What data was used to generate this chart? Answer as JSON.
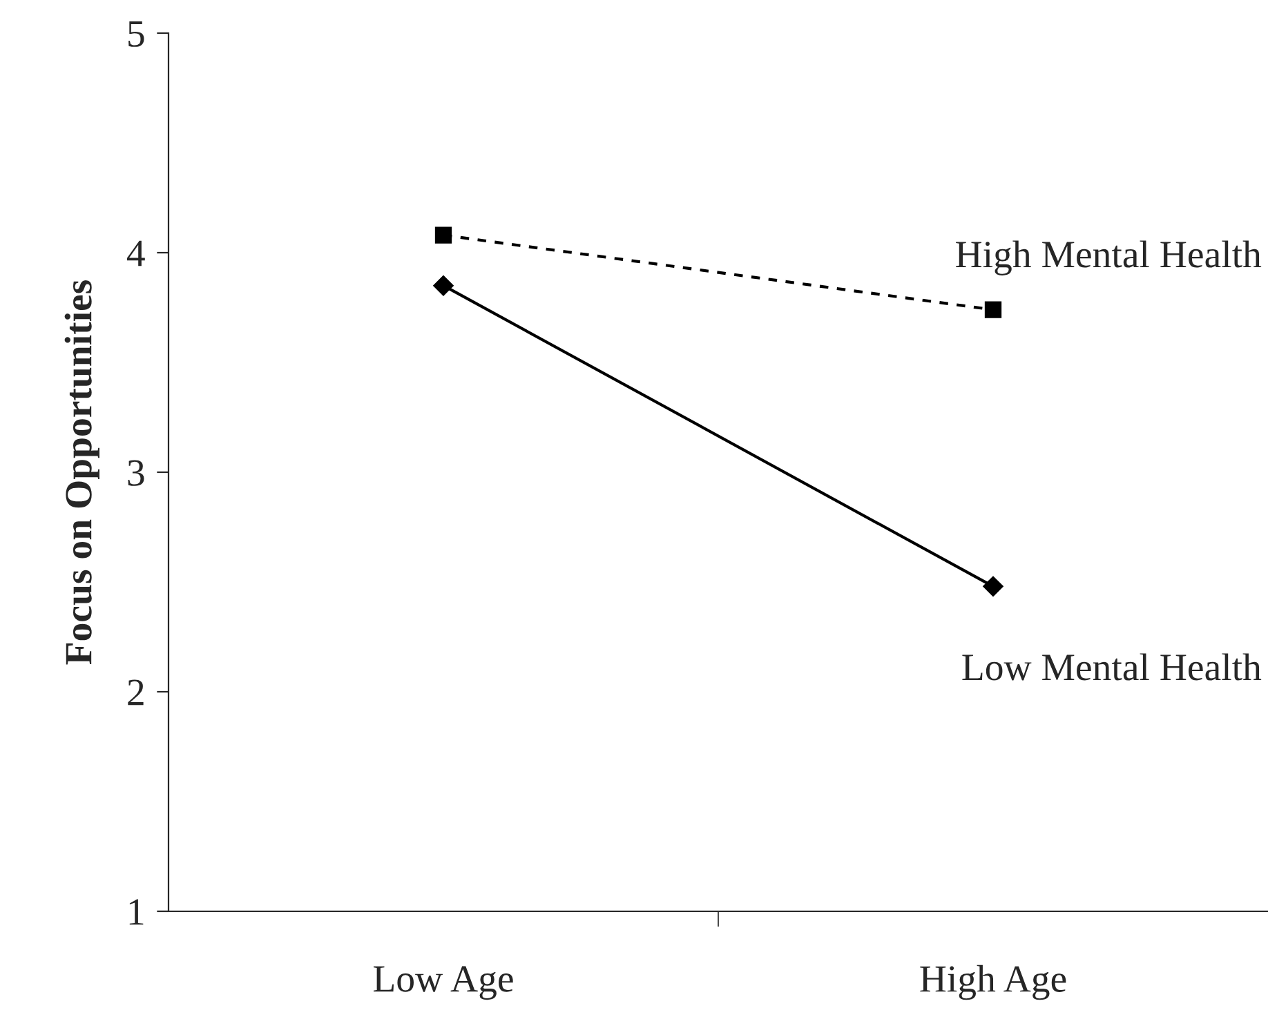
{
  "chart_data": {
    "type": "line",
    "ylabel": "Focus on Opportunities",
    "categories": [
      "Low Age",
      "High Age"
    ],
    "series": [
      {
        "name": "High Mental Health",
        "color": "#000000",
        "values": [
          4.08,
          3.74
        ],
        "marker": "square",
        "line_style": "dashed"
      },
      {
        "name": "Low Mental Health",
        "color": "#000000",
        "values": [
          3.85,
          2.48
        ],
        "marker": "diamond",
        "line_style": "solid"
      }
    ],
    "ylim": [
      1,
      5
    ],
    "yticks": [
      1,
      2,
      3,
      4,
      5
    ],
    "grid": false
  }
}
